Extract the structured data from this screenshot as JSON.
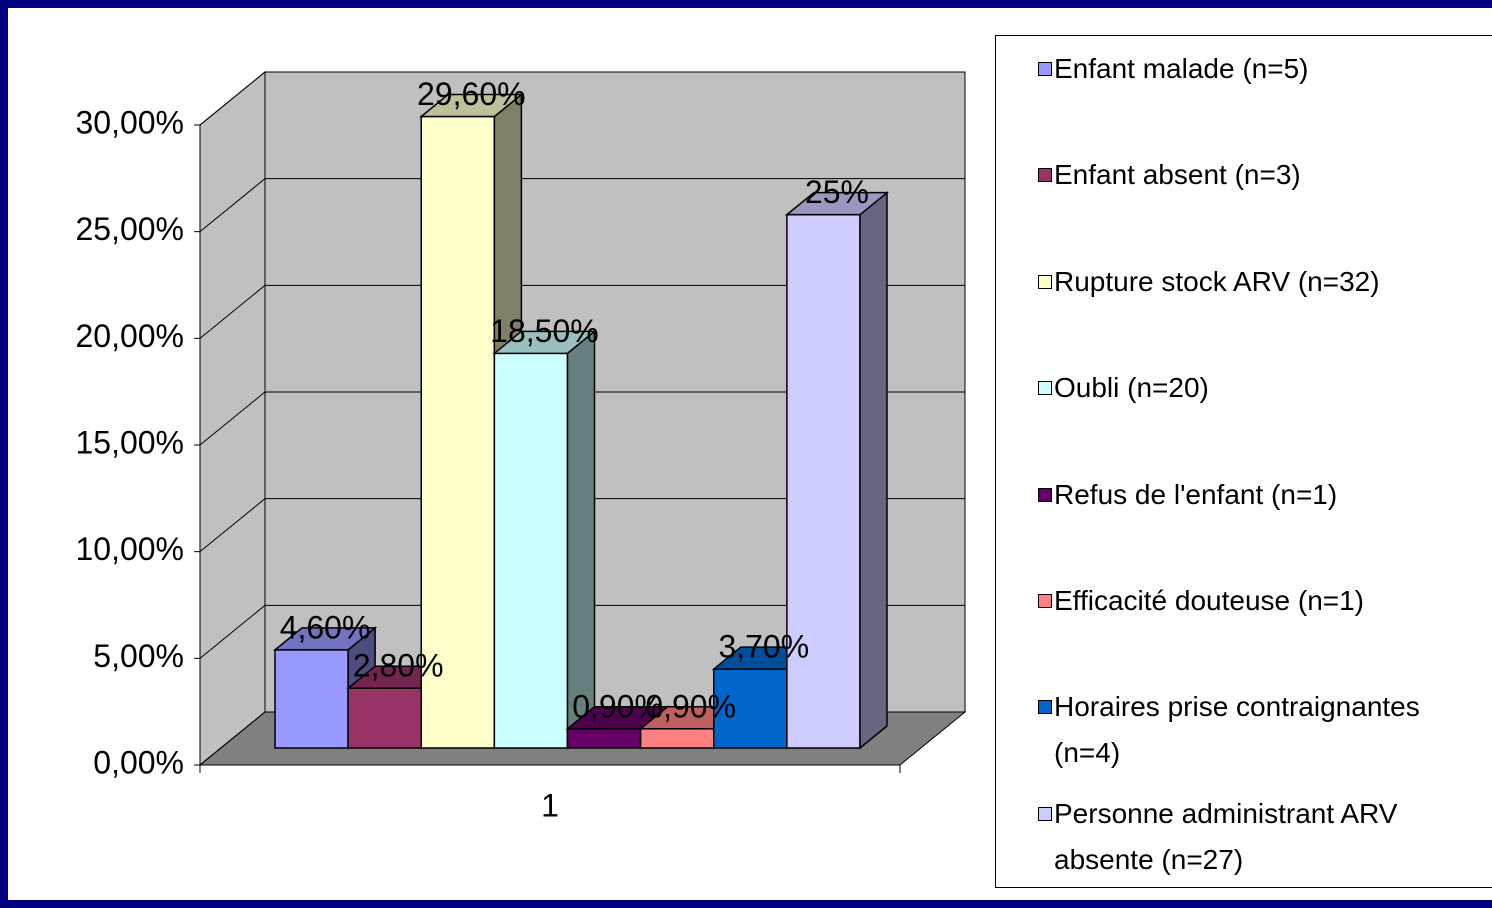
{
  "chart_data": {
    "type": "bar3d",
    "categories": [
      "1"
    ],
    "series": [
      {
        "name": "Enfant malade (n=5)",
        "color": "#9999ff",
        "values": [
          4.6
        ],
        "value_labels": [
          "4,60%"
        ]
      },
      {
        "name": "Enfant absent (n=3)",
        "color": "#993366",
        "values": [
          2.8
        ],
        "value_labels": [
          "2,80%"
        ]
      },
      {
        "name": "Rupture stock ARV (n=32)",
        "color": "#ffffcc",
        "values": [
          29.6
        ],
        "value_labels": [
          "29,60%"
        ]
      },
      {
        "name": "Oubli (n=20)",
        "color": "#ccffff",
        "values": [
          18.5
        ],
        "value_labels": [
          "18,50%"
        ]
      },
      {
        "name": "Refus de l'enfant (n=1)",
        "color": "#660066",
        "values": [
          0.9
        ],
        "value_labels": [
          "0,90%"
        ]
      },
      {
        "name": "Efficacité douteuse (n=1)",
        "color": "#ff8080",
        "values": [
          0.9
        ],
        "value_labels": [
          "0,90%"
        ]
      },
      {
        "name": "Horaires prise contraignantes (n=4)",
        "color": "#0066cc",
        "values": [
          3.7
        ],
        "value_labels": [
          "3,70%"
        ]
      },
      {
        "name": "Personne administrant ARV absente (n=27)",
        "color": "#ccccff",
        "values": [
          25
        ],
        "value_labels": [
          "25%"
        ]
      }
    ],
    "ylim": [
      0,
      30
    ],
    "yticks": [
      {
        "value": 0,
        "label": "0,00%"
      },
      {
        "value": 5,
        "label": "5,00%"
      },
      {
        "value": 10,
        "label": "10,00%"
      },
      {
        "value": 15,
        "label": "15,00%"
      },
      {
        "value": 20,
        "label": "20,00%"
      },
      {
        "value": 25,
        "label": "25,00%"
      },
      {
        "value": 30,
        "label": "30,00%"
      }
    ],
    "grid": true,
    "legend": "right"
  }
}
